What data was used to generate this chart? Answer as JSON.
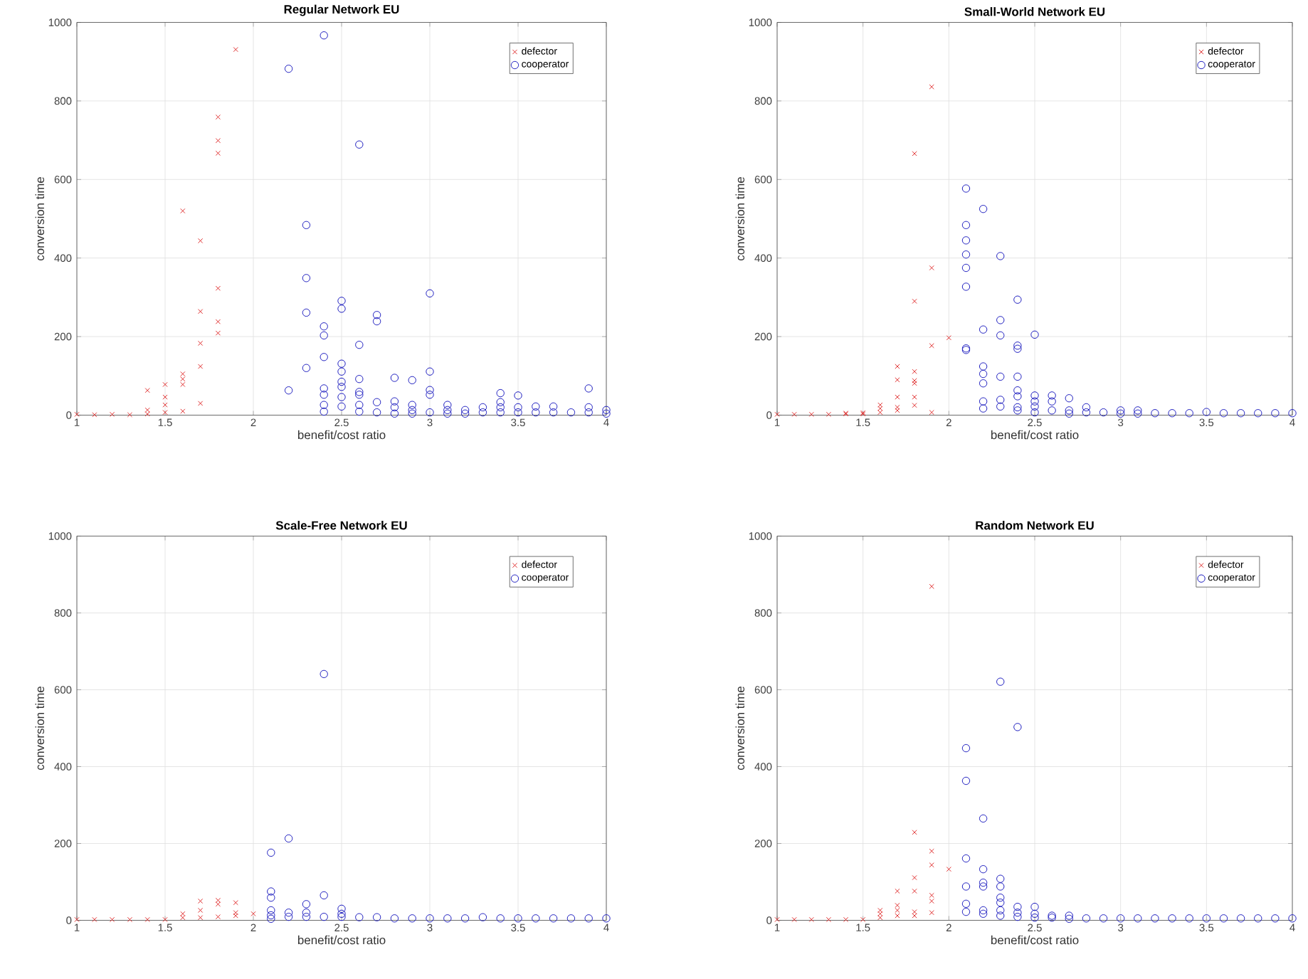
{
  "chart_data": [
    {
      "type": "scatter",
      "title": "Regular Network EU",
      "xlabel": "benefit/cost ratio",
      "ylabel": "conversion time",
      "xlim": [
        1,
        4
      ],
      "ylim": [
        0,
        1000
      ],
      "xticks": [
        1,
        1.5,
        2,
        2.5,
        3,
        3.5,
        4
      ],
      "yticks": [
        0,
        200,
        400,
        600,
        800,
        1000
      ],
      "grid": true,
      "legend": "top right",
      "series": [
        {
          "name": "defector",
          "color": "#e03030",
          "marker": "cross",
          "x": [
            1,
            1.1,
            1.2,
            1.3,
            1.4,
            1.4,
            1.4,
            1.5,
            1.5,
            1.5,
            1.5,
            1.6,
            1.6,
            1.6,
            1.6,
            1.6,
            1.7,
            1.7,
            1.7,
            1.7,
            1.7,
            1.8,
            1.8,
            1.8,
            1.8,
            1.8,
            1.8,
            1.9
          ],
          "values": [
            2,
            1,
            2,
            1,
            63,
            13,
            3,
            78,
            46,
            26,
            7,
            520,
            105,
            92,
            78,
            10,
            444,
            264,
            183,
            124,
            30,
            759,
            699,
            667,
            323,
            238,
            209,
            931
          ]
        },
        {
          "name": "cooperator",
          "color": "#2020c0",
          "marker": "circle",
          "x": [
            2.2,
            2.2,
            2.3,
            2.3,
            2.3,
            2.3,
            2.4,
            2.4,
            2.4,
            2.4,
            2.4,
            2.4,
            2.4,
            2.4,
            2.5,
            2.5,
            2.5,
            2.5,
            2.5,
            2.5,
            2.5,
            2.5,
            2.6,
            2.6,
            2.6,
            2.6,
            2.6,
            2.6,
            2.6,
            2.7,
            2.7,
            2.7,
            2.7,
            2.8,
            2.8,
            2.8,
            2.8,
            2.9,
            2.9,
            2.9,
            2.9,
            3.0,
            3.0,
            3.0,
            3.0,
            3.0,
            3.1,
            3.1,
            3.1,
            3.2,
            3.2,
            3.3,
            3.3,
            3.4,
            3.4,
            3.4,
            3.4,
            3.5,
            3.5,
            3.5,
            3.6,
            3.6,
            3.7,
            3.7,
            3.8,
            3.9,
            3.9,
            3.9,
            4.0,
            4.0
          ],
          "values": [
            882,
            63,
            484,
            349,
            261,
            120,
            967,
            226,
            203,
            148,
            68,
            52,
            26,
            9,
            291,
            271,
            131,
            111,
            85,
            72,
            46,
            22,
            689,
            179,
            92,
            59,
            52,
            26,
            9,
            255,
            239,
            33,
            7,
            95,
            35,
            20,
            4,
            89,
            26,
            13,
            4,
            310,
            111,
            64,
            52,
            7,
            26,
            13,
            4,
            13,
            4,
            20,
            7,
            56,
            33,
            20,
            7,
            50,
            20,
            7,
            22,
            7,
            22,
            7,
            7,
            68,
            20,
            7,
            13,
            4
          ]
        }
      ]
    },
    {
      "type": "scatter",
      "title": "Small-World Network EU",
      "xlabel": "benefit/cost ratio",
      "ylabel": "conversion time",
      "xlim": [
        1,
        4
      ],
      "ylim": [
        0,
        1000
      ],
      "xticks": [
        1,
        1.5,
        2,
        2.5,
        3,
        3.5,
        4
      ],
      "yticks": [
        0,
        200,
        400,
        600,
        800,
        1000
      ],
      "grid": true,
      "legend": "top right",
      "series": [
        {
          "name": "defector",
          "color": "#e03030",
          "marker": "cross",
          "x": [
            1,
            1.1,
            1.2,
            1.3,
            1.4,
            1.4,
            1.5,
            1.5,
            1.6,
            1.6,
            1.6,
            1.7,
            1.7,
            1.7,
            1.7,
            1.7,
            1.8,
            1.8,
            1.8,
            1.8,
            1.8,
            1.8,
            1.8,
            1.9,
            1.9,
            1.9,
            1.9,
            2.0
          ],
          "values": [
            2,
            2,
            2,
            2,
            3,
            5,
            3,
            6,
            26,
            17,
            7,
            124,
            90,
            46,
            20,
            12,
            666,
            290,
            111,
            88,
            81,
            46,
            25,
            836,
            375,
            177,
            7,
            197
          ]
        },
        {
          "name": "cooperator",
          "color": "#2020c0",
          "marker": "circle",
          "x": [
            2.1,
            2.1,
            2.1,
            2.1,
            2.1,
            2.1,
            2.1,
            2.1,
            2.2,
            2.2,
            2.2,
            2.2,
            2.2,
            2.2,
            2.2,
            2.3,
            2.3,
            2.3,
            2.3,
            2.3,
            2.3,
            2.4,
            2.4,
            2.4,
            2.4,
            2.4,
            2.4,
            2.4,
            2.4,
            2.5,
            2.5,
            2.5,
            2.5,
            2.5,
            2.6,
            2.6,
            2.6,
            2.7,
            2.7,
            2.7,
            2.8,
            2.8,
            2.9,
            3.0,
            3.0,
            3.1,
            3.1,
            3.2,
            3.3,
            3.4,
            3.5,
            3.6,
            3.7,
            3.8,
            3.9,
            4.0
          ],
          "values": [
            577,
            484,
            445,
            409,
            375,
            327,
            170,
            166,
            525,
            218,
            124,
            105,
            81,
            35,
            17,
            405,
            242,
            203,
            98,
            39,
            22,
            294,
            177,
            169,
            98,
            63,
            48,
            20,
            12,
            205,
            50,
            35,
            22,
            7,
            50,
            35,
            12,
            43,
            12,
            4,
            20,
            7,
            7,
            12,
            4,
            12,
            4,
            5,
            5,
            5,
            8,
            5,
            5,
            5,
            5,
            5
          ]
        }
      ]
    },
    {
      "type": "scatter",
      "title": "Scale-Free Network EU",
      "xlabel": "benefit/cost ratio",
      "ylabel": "conversion time",
      "xlim": [
        1,
        4
      ],
      "ylim": [
        0,
        1000
      ],
      "xticks": [
        1,
        1.5,
        2,
        2.5,
        3,
        3.5,
        4
      ],
      "yticks": [
        0,
        200,
        400,
        600,
        800,
        1000
      ],
      "grid": true,
      "legend": "top right",
      "series": [
        {
          "name": "defector",
          "color": "#e03030",
          "marker": "cross",
          "x": [
            1,
            1.1,
            1.2,
            1.3,
            1.4,
            1.5,
            1.6,
            1.6,
            1.7,
            1.7,
            1.7,
            1.8,
            1.8,
            1.8,
            1.9,
            1.9,
            1.9,
            2.0
          ],
          "values": [
            2,
            2,
            2,
            2,
            2,
            2,
            17,
            7,
            50,
            26,
            7,
            52,
            42,
            9,
            46,
            20,
            12,
            17
          ]
        },
        {
          "name": "cooperator",
          "color": "#2020c0",
          "marker": "circle",
          "x": [
            2.1,
            2.1,
            2.1,
            2.1,
            2.1,
            2.1,
            2.2,
            2.2,
            2.2,
            2.3,
            2.3,
            2.3,
            2.4,
            2.4,
            2.4,
            2.5,
            2.5,
            2.5,
            2.6,
            2.7,
            2.8,
            2.9,
            3.0,
            3.1,
            3.2,
            3.3,
            3.4,
            3.5,
            3.6,
            3.7,
            3.8,
            3.9,
            4.0
          ],
          "values": [
            176,
            75,
            59,
            26,
            13,
            4,
            213,
            20,
            9,
            42,
            20,
            9,
            641,
            65,
            9,
            30,
            17,
            9,
            8,
            8,
            5,
            5,
            5,
            5,
            5,
            8,
            5,
            5,
            5,
            5,
            5,
            5,
            5
          ]
        }
      ]
    },
    {
      "type": "scatter",
      "title": "Random Network EU",
      "xlabel": "benefit/cost ratio",
      "ylabel": "conversion time",
      "xlim": [
        1,
        4
      ],
      "ylim": [
        0,
        1000
      ],
      "xticks": [
        1,
        1.5,
        2,
        2.5,
        3,
        3.5,
        4
      ],
      "yticks": [
        0,
        200,
        400,
        600,
        800,
        1000
      ],
      "grid": true,
      "legend": "top right",
      "series": [
        {
          "name": "defector",
          "color": "#e03030",
          "marker": "cross",
          "x": [
            1,
            1.1,
            1.2,
            1.3,
            1.4,
            1.5,
            1.6,
            1.6,
            1.6,
            1.7,
            1.7,
            1.7,
            1.7,
            1.8,
            1.8,
            1.8,
            1.8,
            1.8,
            1.9,
            1.9,
            1.9,
            1.9,
            1.9,
            1.9,
            2.0
          ],
          "values": [
            2,
            2,
            2,
            2,
            2,
            2,
            26,
            17,
            7,
            76,
            39,
            26,
            12,
            229,
            111,
            76,
            22,
            12,
            869,
            180,
            144,
            65,
            50,
            20,
            133
          ]
        },
        {
          "name": "cooperator",
          "color": "#2020c0",
          "marker": "circle",
          "x": [
            2.1,
            2.1,
            2.1,
            2.1,
            2.1,
            2.1,
            2.2,
            2.2,
            2.2,
            2.2,
            2.2,
            2.2,
            2.3,
            2.3,
            2.3,
            2.3,
            2.3,
            2.3,
            2.3,
            2.4,
            2.4,
            2.4,
            2.4,
            2.5,
            2.5,
            2.5,
            2.6,
            2.6,
            2.7,
            2.7,
            2.8,
            2.9,
            3.0,
            3.1,
            3.2,
            3.3,
            3.4,
            3.5,
            3.6,
            3.7,
            3.8,
            3.9,
            4.0
          ],
          "values": [
            448,
            363,
            161,
            88,
            43,
            22,
            265,
            133,
            98,
            88,
            26,
            17,
            621,
            108,
            88,
            59,
            46,
            26,
            12,
            503,
            35,
            20,
            9,
            35,
            17,
            7,
            12,
            7,
            12,
            4,
            5,
            5,
            5,
            5,
            5,
            5,
            5,
            5,
            5,
            5,
            5,
            5,
            5
          ]
        }
      ]
    }
  ]
}
